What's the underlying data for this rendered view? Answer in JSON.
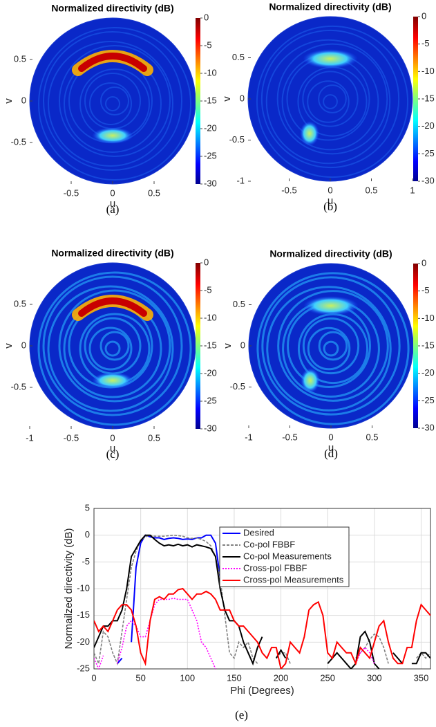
{
  "chart_data": [
    {
      "type": "heatmap",
      "title": "Normalized directivity (dB)",
      "xlabel": "u",
      "ylabel": "v",
      "caption": "(a)",
      "xlim": [
        -1,
        1
      ],
      "ylim": [
        -1,
        1
      ],
      "xticks": [
        -0.5,
        0,
        0.5
      ],
      "yticks": [
        0.5,
        0,
        -0.5
      ],
      "clim": [
        -30,
        0
      ],
      "cticks": [
        0,
        -5,
        -10,
        -15,
        -20,
        -25,
        -30
      ]
    },
    {
      "type": "heatmap",
      "title": "Normalized directivity (dB)",
      "xlabel": "u",
      "ylabel": "v",
      "caption": "(b)",
      "xlim": [
        -1,
        1
      ],
      "ylim": [
        -1,
        1
      ],
      "xticks": [
        -0.5,
        0,
        0.5,
        1
      ],
      "yticks": [
        0.5,
        0,
        -0.5,
        -1
      ],
      "clim": [
        -30,
        0
      ],
      "cticks": [
        0,
        -5,
        -10,
        -15,
        -20,
        -25,
        -30
      ]
    },
    {
      "type": "heatmap",
      "title": "Normalized directivity (dB)",
      "xlabel": "u",
      "ylabel": "v",
      "caption": "(c)",
      "xlim": [
        -1,
        1
      ],
      "ylim": [
        -1,
        1
      ],
      "xticks": [
        -1,
        -0.5,
        0,
        0.5
      ],
      "yticks": [
        0.5,
        0,
        -0.5
      ],
      "clim": [
        -30,
        0
      ],
      "cticks": [
        0,
        -5,
        -10,
        -15,
        -20,
        -25,
        -30
      ]
    },
    {
      "type": "heatmap",
      "title": "Normalized directivity (dB)",
      "xlabel": "u",
      "ylabel": "v",
      "caption": "(d)",
      "xlim": [
        -1,
        1
      ],
      "ylim": [
        -1,
        1
      ],
      "xticks": [
        -1,
        -0.5,
        0,
        0.5
      ],
      "yticks": [
        0.5,
        0,
        -0.5
      ],
      "clim": [
        -30,
        0
      ],
      "cticks": [
        0,
        -5,
        -10,
        -15,
        -20,
        -25,
        -30
      ]
    },
    {
      "type": "line",
      "xlabel": "Phi (Degrees)",
      "ylabel": "Normailzed directivity (dB)",
      "caption": "(e)",
      "xlim": [
        0,
        360
      ],
      "ylim": [
        -25,
        5
      ],
      "xticks": [
        0,
        50,
        100,
        150,
        200,
        250,
        300,
        350
      ],
      "yticks": [
        5,
        0,
        -5,
        -10,
        -15,
        -20,
        -25
      ],
      "grid": true,
      "legend": "upper right",
      "x": [
        0,
        5,
        10,
        15,
        20,
        25,
        30,
        35,
        40,
        45,
        50,
        55,
        60,
        65,
        70,
        75,
        80,
        85,
        90,
        95,
        100,
        105,
        110,
        115,
        120,
        125,
        130,
        135,
        140,
        145,
        150,
        155,
        160,
        165,
        170,
        175,
        180,
        185,
        190,
        195,
        200,
        205,
        210,
        215,
        220,
        225,
        230,
        235,
        240,
        245,
        250,
        255,
        260,
        265,
        270,
        275,
        280,
        285,
        290,
        295,
        300,
        305,
        310,
        315,
        320,
        325,
        330,
        335,
        340,
        345,
        350,
        355,
        360
      ],
      "series": [
        {
          "name": "Desired",
          "color": "#0000ff",
          "dash": "solid",
          "values": [
            null,
            null,
            null,
            null,
            null,
            -24,
            -23,
            null,
            -20,
            -6,
            -1.5,
            0,
            -0.3,
            -0.5,
            -0.5,
            -0.8,
            -0.6,
            -0.5,
            -0.6,
            -0.8,
            -0.7,
            -0.8,
            -0.5,
            -0.5,
            0,
            0,
            -1.5,
            -8,
            null,
            null,
            -22,
            null,
            null,
            null,
            null,
            null,
            null,
            null,
            null,
            null,
            null,
            null,
            null,
            null,
            null,
            null,
            null,
            null,
            null,
            null,
            null,
            null,
            null,
            null,
            null,
            null,
            null,
            null,
            null,
            null,
            null,
            null,
            null,
            null,
            null,
            null,
            null,
            null,
            null,
            null,
            null,
            null,
            null
          ]
        },
        {
          "name": "Co-pol FBBF",
          "color": "#808080",
          "dash": "dashed",
          "values": [
            -22,
            -24,
            -18,
            -19,
            -22,
            -24,
            -18,
            -12,
            -6,
            -3,
            -1,
            -0.3,
            0,
            -0.2,
            -0.2,
            -0.2,
            -0.1,
            0,
            -0.1,
            -0.2,
            -0.5,
            -0.6,
            -0.5,
            -0.8,
            -1.2,
            -2,
            -4,
            -8,
            -15,
            -22,
            -23,
            -20,
            -21,
            -20,
            -23,
            -24,
            null,
            null,
            null,
            -23,
            -22,
            -22,
            -24,
            null,
            null,
            null,
            null,
            null,
            null,
            null,
            null,
            null,
            null,
            null,
            null,
            null,
            -23,
            -22,
            -21,
            -19.5,
            -18.5,
            -19,
            -21,
            -24,
            null,
            null,
            null,
            null,
            null,
            -23,
            -22,
            -23,
            -22
          ]
        },
        {
          "name": "Co-pol Measurements",
          "color": "#000000",
          "dash": "solid",
          "values": [
            -21,
            -19,
            -17,
            -17,
            -16,
            -16,
            -14,
            -10,
            -4,
            -2.5,
            -1,
            0,
            0,
            -0.8,
            -1.5,
            -2,
            -1.8,
            -2,
            -1.7,
            -2,
            -1.8,
            -2.2,
            -1.8,
            -2,
            -2.2,
            -2.5,
            -4,
            -10,
            -14,
            -16,
            -16,
            -17,
            -20,
            -22,
            -24,
            -21,
            -19,
            null,
            null,
            -23,
            -21.5,
            -23,
            null,
            null,
            null,
            null,
            null,
            null,
            null,
            null,
            -24,
            -23,
            -22,
            -23,
            -24,
            -25,
            -24,
            -19,
            -18,
            -20,
            -24,
            -25,
            null,
            null,
            -22,
            -23,
            -24,
            null,
            -24,
            -24,
            -22,
            -22,
            -23
          ]
        },
        {
          "name": "Cross-pol FBBF",
          "color": "#ff00ff",
          "dash": "dotted",
          "values": [
            -23,
            -25,
            -22.5,
            null,
            null,
            -24,
            -21,
            -17,
            -16,
            -17,
            -19,
            -19,
            -16,
            -13,
            -12,
            -12,
            -12,
            -11.8,
            -12,
            -12,
            -12,
            -14,
            -16,
            -20,
            -21,
            -23,
            -25,
            null,
            null,
            null,
            null,
            null,
            null,
            null,
            null,
            null,
            null,
            null,
            null,
            null,
            null,
            null,
            null,
            null,
            null,
            null,
            null,
            null,
            null,
            null,
            null,
            null,
            null,
            null,
            null,
            null,
            -24,
            -22,
            -21,
            -22,
            -24,
            null,
            null,
            null,
            null,
            null,
            null,
            null,
            null,
            null,
            null,
            null,
            null
          ]
        },
        {
          "name": "Cross-pol Measurements",
          "color": "#ff0000",
          "dash": "solid",
          "values": [
            -16,
            -18,
            -17,
            -18,
            -16,
            -14,
            -13,
            -13,
            -14,
            -17,
            -22,
            -24,
            -16,
            -12,
            -11.5,
            -12,
            -11,
            -11,
            -10.2,
            -10,
            -11,
            -12,
            -11,
            -11,
            -10.5,
            -11,
            -12,
            -14,
            -14,
            -14,
            -16,
            -17,
            -17,
            -18,
            -19,
            -20,
            -22,
            -23,
            -21,
            -21,
            -25,
            -24,
            -20,
            -21,
            -22,
            -19,
            -14,
            -13,
            -12.5,
            -15,
            -22,
            -23,
            -20,
            -21,
            -22,
            -22,
            -24,
            -21,
            -22,
            -23,
            -20,
            -17,
            -16,
            -20,
            -23,
            -24,
            -24,
            -21,
            -21,
            -16,
            -13,
            -14,
            -15
          ]
        }
      ]
    }
  ]
}
